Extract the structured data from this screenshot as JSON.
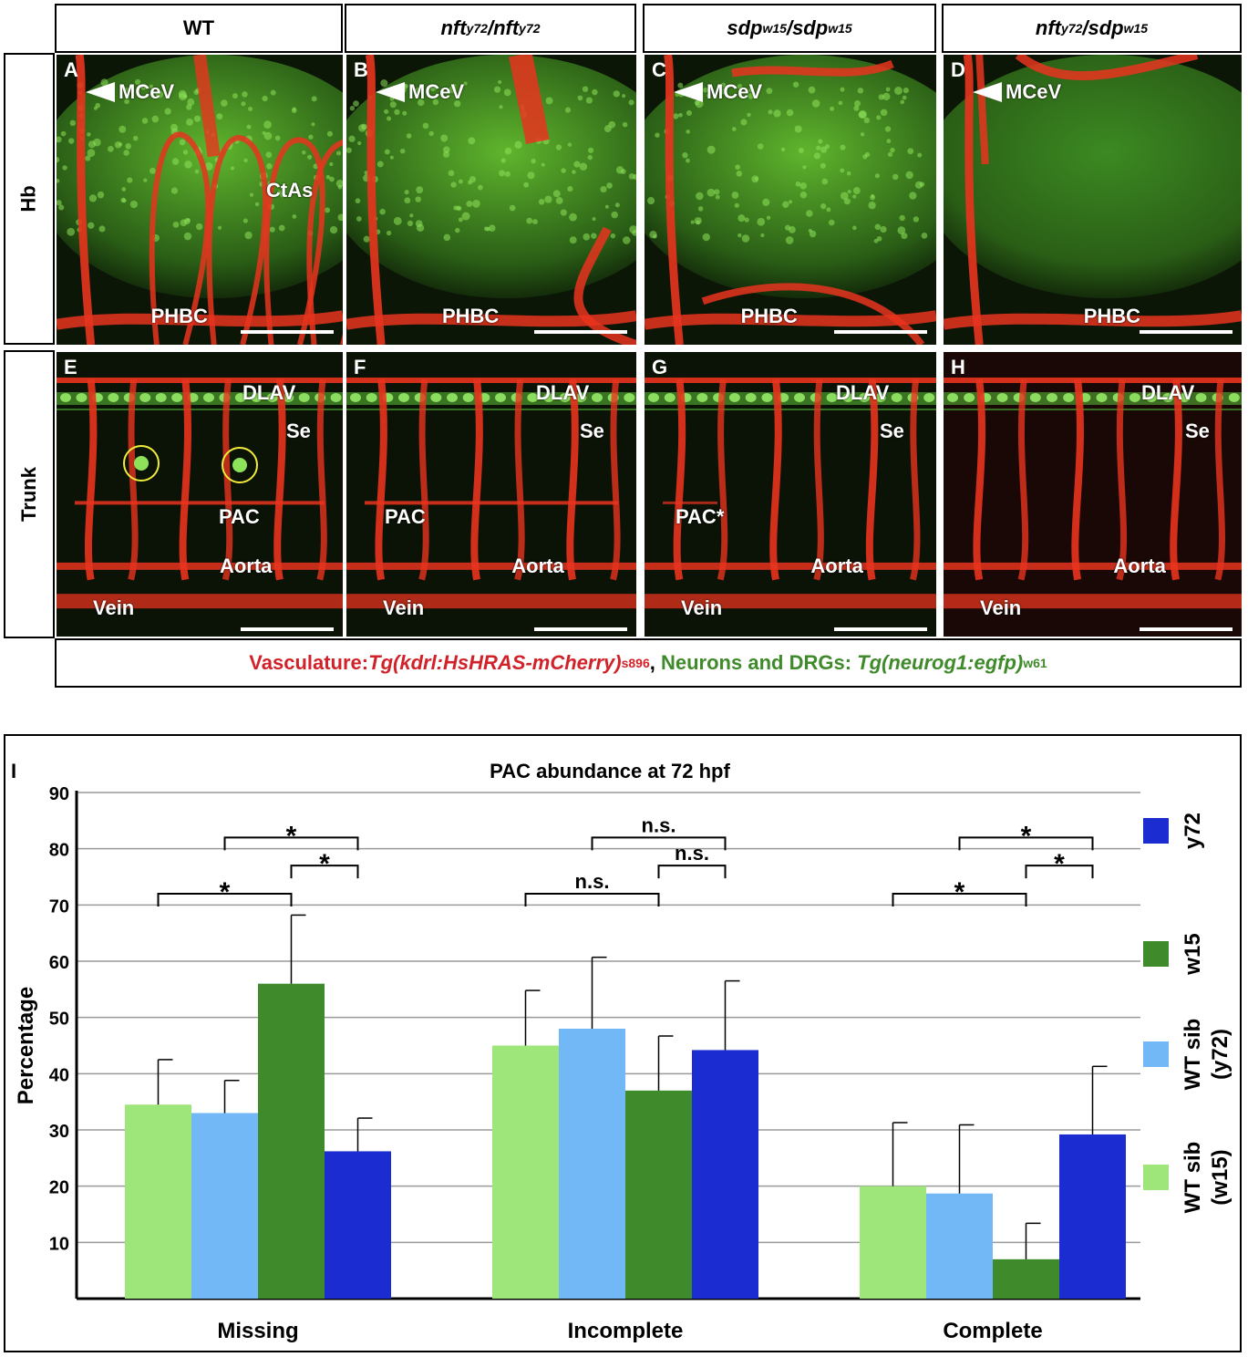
{
  "columns": [
    {
      "id": "wt",
      "label": "WT"
    },
    {
      "id": "nft",
      "label": "nft",
      "sup": "y72",
      "sep": "/",
      "label2": "nft",
      "sup2": "y72"
    },
    {
      "id": "sdp",
      "label": "sdp",
      "sup": "w15",
      "sep": "/",
      "label2": "sdp",
      "sup2": "w15"
    },
    {
      "id": "nftsdp",
      "label": "nft",
      "sup": "y72",
      "sep": "/",
      "label2": "sdp",
      "sup2": "w15"
    }
  ],
  "rows": {
    "hb": "Hb",
    "trunk": "Trunk"
  },
  "hb_panels": [
    {
      "letter": "A",
      "mcev": "MCeV",
      "phbc": "PHBC",
      "ctas": "CtAs"
    },
    {
      "letter": "B",
      "mcev": "MCeV",
      "phbc": "PHBC"
    },
    {
      "letter": "C",
      "mcev": "MCeV",
      "phbc": "PHBC"
    },
    {
      "letter": "D",
      "mcev": "MCeV",
      "phbc": "PHBC"
    }
  ],
  "trunk_panels": [
    {
      "letter": "E",
      "dlav": "DLAV",
      "se": "Se",
      "pac": "PAC",
      "aorta": "Aorta",
      "vein": "Vein"
    },
    {
      "letter": "F",
      "dlav": "DLAV",
      "se": "Se",
      "pac": "PAC",
      "aorta": "Aorta",
      "vein": "Vein"
    },
    {
      "letter": "G",
      "dlav": "DLAV",
      "se": "Se",
      "pac": "PAC*",
      "aorta": "Aorta",
      "vein": "Vein"
    },
    {
      "letter": "H",
      "dlav": "DLAV",
      "se": "Se",
      "aorta": "Aorta",
      "vein": "Vein"
    }
  ],
  "legend": {
    "vasc_label": "Vasculature: ",
    "vasc_tg": "Tg(kdrl:HsHRAS-mCherry)",
    "vasc_sup": "s896",
    "comma": ", ",
    "neuro_label": "Neurons and DRGs: ",
    "neuro_tg": "Tg(neurog1:egfp)",
    "neuro_sup": "w61"
  },
  "colors": {
    "wt_sib_w15": "#9ee67a",
    "wt_sib_y72": "#72b7f6",
    "w15": "#3f8a2a",
    "y72": "#1b2dd0"
  },
  "chart_data": {
    "type": "bar",
    "panel_letter": "I",
    "title": "PAC abundance at 72 hpf",
    "xlabel": "",
    "ylabel": "Percentage",
    "ylim": [
      0,
      90
    ],
    "yticks": [
      10,
      20,
      30,
      40,
      50,
      60,
      70,
      80,
      90
    ],
    "grid": true,
    "legend_position": "right",
    "categories": [
      "Missing",
      "Incomplete",
      "Complete"
    ],
    "series": [
      {
        "name": "WT sib (w15)",
        "legend_lines": [
          "WT sib",
          "(w15)"
        ],
        "color": "#9ee67a",
        "values": [
          34.5,
          45,
          20
        ],
        "err": [
          8,
          9.8,
          11.3
        ]
      },
      {
        "name": "WT sib (y72)",
        "legend_lines": [
          "WT sib",
          "(y72)"
        ],
        "color": "#72b7f6",
        "values": [
          33,
          48,
          18.7
        ],
        "err": [
          5.8,
          12.7,
          12.2
        ]
      },
      {
        "name": "w15",
        "legend_lines": [
          "w15"
        ],
        "color": "#3f8a2a",
        "values": [
          56,
          37,
          7
        ],
        "err": [
          12.2,
          9.7,
          6.4
        ]
      },
      {
        "name": "y72",
        "legend_lines": [
          "y72"
        ],
        "color": "#1b2dd0",
        "values": [
          26.2,
          44.2,
          29.2
        ],
        "err": [
          5.9,
          12.3,
          12.1
        ]
      }
    ],
    "significance": [
      {
        "category": 0,
        "from": 0,
        "to": 2,
        "y": 72,
        "label": "*"
      },
      {
        "category": 0,
        "from": 1,
        "to": 3,
        "y": 82,
        "label": "*"
      },
      {
        "category": 0,
        "from": 2,
        "to": 3,
        "y": 77,
        "label": "*"
      },
      {
        "category": 1,
        "from": 0,
        "to": 2,
        "y": 72,
        "label": "n.s."
      },
      {
        "category": 1,
        "from": 1,
        "to": 3,
        "y": 82,
        "label": "n.s."
      },
      {
        "category": 1,
        "from": 2,
        "to": 3,
        "y": 77,
        "label": "n.s."
      },
      {
        "category": 2,
        "from": 0,
        "to": 2,
        "y": 72,
        "label": "*"
      },
      {
        "category": 2,
        "from": 1,
        "to": 3,
        "y": 82,
        "label": "*"
      },
      {
        "category": 2,
        "from": 2,
        "to": 3,
        "y": 77,
        "label": "*"
      }
    ]
  }
}
